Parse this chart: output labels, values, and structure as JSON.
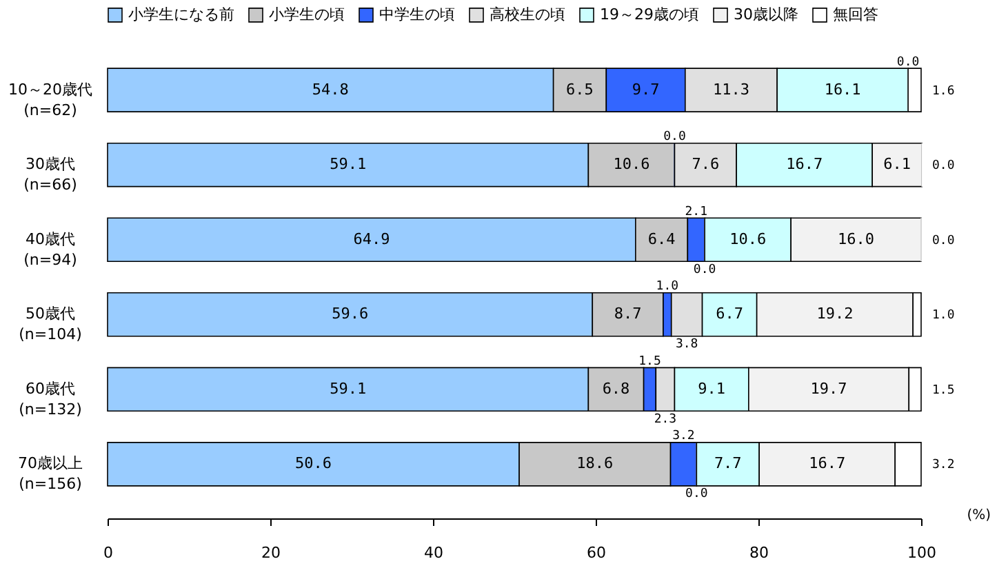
{
  "chart_data": {
    "type": "bar",
    "orientation": "horizontal",
    "stacked": true,
    "legend": "top",
    "xlabel": "(%)",
    "categories": [
      "10～20歳代\n(n=62)",
      "30歳代\n(n=66)",
      "40歳代\n(n=94)",
      "50歳代\n(n=104)",
      "60歳代\n(n=132)",
      "70歳以上\n(n=156)"
    ],
    "xlim": [
      0,
      100
    ],
    "xticks": [
      0,
      20,
      40,
      60,
      80,
      100
    ],
    "series": [
      {
        "name": "小学生になる前",
        "color": "#99ccff",
        "values": [
          54.8,
          59.1,
          64.9,
          59.6,
          59.1,
          50.6
        ],
        "value_labels": [
          "54.8",
          "59.1",
          "64.9",
          "59.6",
          "59.1",
          "50.6"
        ]
      },
      {
        "name": "小学生の頃",
        "color": "#c8c8c8",
        "values": [
          6.5,
          10.6,
          6.4,
          8.7,
          6.8,
          18.6
        ],
        "value_labels": [
          "6.5",
          "10.6",
          "6.4",
          "8.7",
          "6.8",
          "18.6"
        ]
      },
      {
        "name": "中学生の頃",
        "color": "#3366ff",
        "values": [
          9.7,
          0.0,
          2.1,
          1.0,
          1.5,
          3.2
        ],
        "value_labels": [
          "9.7",
          "0.0",
          "2.1",
          "1.0",
          "1.5",
          "3.2"
        ]
      },
      {
        "name": "高校生の頃",
        "color": "#e0e0e0",
        "values": [
          11.3,
          7.6,
          0.0,
          3.8,
          2.3,
          0.0
        ],
        "value_labels": [
          "11.3",
          "7.6",
          "0.0",
          "3.8",
          "2.3",
          "0.0"
        ]
      },
      {
        "name": "19～29歳の頃",
        "color": "#ccffff",
        "values": [
          16.1,
          16.7,
          10.6,
          6.7,
          9.1,
          7.7
        ],
        "value_labels": [
          "16.1",
          "16.7",
          "10.6",
          "6.7",
          "9.1",
          "7.7"
        ]
      },
      {
        "name": "30歳以降",
        "color": "#f2f2f2",
        "values": [
          0.0,
          6.1,
          16.0,
          19.2,
          19.7,
          16.7
        ],
        "value_labels": [
          "0.0",
          "6.1",
          "16.0",
          "19.2",
          "19.7",
          "16.7"
        ]
      },
      {
        "name": "無回答",
        "color": "#ffffff",
        "values": [
          1.6,
          0.0,
          0.0,
          1.0,
          1.5,
          3.2
        ],
        "value_labels": [
          "1.6",
          "0.0",
          "0.0",
          "1.0",
          "1.5",
          "3.2"
        ]
      }
    ]
  }
}
